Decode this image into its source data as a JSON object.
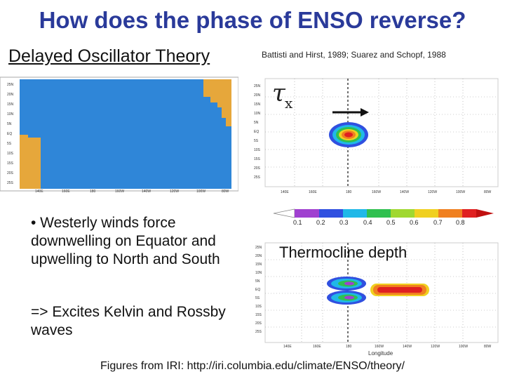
{
  "title": "How does the phase of ENSO reverse?",
  "subtitle": "Delayed Oscillator Theory",
  "citation": "Battisti and Hirst, 1989; Suarez and Schopf, 1988",
  "bullets": [
    "• Westerly winds force downwelling on Equator and upwelling to North and South",
    "=> Excites Kelvin and Rossby waves"
  ],
  "wind_label": {
    "symbol": "τ",
    "subscript": "x"
  },
  "thermocline_label": "Thermocline depth",
  "footer": "Figures from IRI: http://iri.columbia.edu/climate/ENSO/theory/",
  "map_lat_labels": [
    "25N",
    "20N",
    "15N",
    "10N",
    "5N",
    "EQ",
    "5S",
    "10S",
    "15S",
    "20S",
    "25S"
  ],
  "map_lon_labels": [
    "140E",
    "160E",
    "180",
    "160W",
    "140W",
    "120W",
    "100W",
    "80W"
  ],
  "colorbar_labels": [
    "0.1",
    "0.2",
    "0.3",
    "0.4",
    "0.5",
    "0.6",
    "0.7",
    "0.8"
  ],
  "colorbar_colors": [
    "#a040d0",
    "#3050e0",
    "#20b8e8",
    "#30c050",
    "#a0d830",
    "#f0d020",
    "#f08020",
    "#e02020"
  ],
  "longitude_label": "Longitude",
  "colors": {
    "ocean": "#2f86d8",
    "land": "#e6a73b",
    "title": "#2a3a9a"
  }
}
